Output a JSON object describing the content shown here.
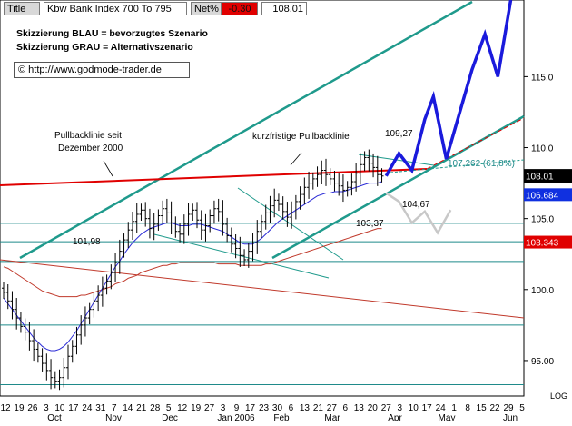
{
  "header": {
    "title_label": "Title",
    "title": "Kbw Bank Index 700 To 795",
    "change_label": "Net%",
    "change_value": "-0.30",
    "last_value": "108.01"
  },
  "notes": {
    "line1": "Skizzierung BLAU = bevorzugtes Szenario",
    "line2": "Skizzierung GRAU = Alternativszenario",
    "copyright_symbol": "©",
    "copyright_url": "http://www.godmode-trader.de"
  },
  "annotations": {
    "pullback_long_1": "Pullbacklinie seit",
    "pullback_long_2": "Dezember 2000",
    "pullback_short": "kurzfristige Pullbacklinie",
    "high_value": "109,27",
    "fib_label": "107,262 (61,8%)",
    "level_10467": "104,67",
    "level_10337": "103,37",
    "level_10198": "101,98"
  },
  "colors": {
    "price": "#000000",
    "channel": "#1f9a8c",
    "pullback": "#e00000",
    "ma_fast": "#2b2bd6",
    "ma_slow": "#c0392b",
    "scenario_blue": "#1a1adc",
    "scenario_grey": "#c8c8c8",
    "horizontal": "#1f8a8a",
    "badge_last": "#000000",
    "badge_blue": "#1030e0",
    "badge_red": "#e00000"
  },
  "chart_data": {
    "type": "ohlc",
    "ylim": [
      92.5,
      120.4
    ],
    "y_ticks": [
      95.0,
      100.0,
      105.0,
      110.0,
      115.0
    ],
    "y_tick_labels": [
      "95.00",
      "100.0",
      "105.0",
      "110.0",
      "115.0"
    ],
    "scale_label": "LOG",
    "x_day_labels": [
      "12",
      "19",
      "26",
      "3",
      "10",
      "17",
      "24",
      "31",
      "7",
      "14",
      "21",
      "28",
      "5",
      "12",
      "19",
      "27",
      "3",
      "9",
      "17",
      "23",
      "30",
      "6",
      "13",
      "21",
      "27",
      "6",
      "13",
      "20",
      "27",
      "3",
      "10",
      "17",
      "24",
      "1",
      "8",
      "15",
      "22",
      "29",
      "5"
    ],
    "x_month_labels": [
      "Oct",
      "Nov",
      "Dec",
      "Jan 2006",
      "Feb",
      "Mar",
      "Apr",
      "May",
      "Jun"
    ],
    "price_badges": [
      {
        "value": "108.01",
        "color": "#000000"
      },
      {
        "value": "106.684",
        "color": "#1030e0"
      },
      {
        "value": "103.343",
        "color": "#e00000"
      }
    ],
    "horizontal_levels": [
      93.3,
      97.5,
      101.98,
      103.37,
      104.67
    ],
    "fib_level": 107.262,
    "swing_levels": {
      "high": 109.27
    },
    "close": [
      99.8,
      99.2,
      98.6,
      98.0,
      97.4,
      97.0,
      96.4,
      95.8,
      95.3,
      94.8,
      94.3,
      93.8,
      93.5,
      93.8,
      94.5,
      95.3,
      96.0,
      96.8,
      97.5,
      98.0,
      98.6,
      99.2,
      99.6,
      100.1,
      100.6,
      101.2,
      101.9,
      102.7,
      103.5,
      104.2,
      104.8,
      105.3,
      105.6,
      105.0,
      104.3,
      104.6,
      105.2,
      105.7,
      105.4,
      104.7,
      104.1,
      103.9,
      104.6,
      105.3,
      105.6,
      104.9,
      104.2,
      104.5,
      105.2,
      105.7,
      105.5,
      104.6,
      103.8,
      103.2,
      102.9,
      102.4,
      102.1,
      102.7,
      103.3,
      104.1,
      104.8,
      105.4,
      105.9,
      106.3,
      106.0,
      105.5,
      105.1,
      105.4,
      106.2,
      106.7,
      107.2,
      107.5,
      107.8,
      108.1,
      108.4,
      108.1,
      107.8,
      107.5,
      107.3,
      107.0,
      107.2,
      107.6,
      108.2,
      108.8,
      109.3,
      108.9,
      108.6,
      108.1,
      108.0
    ],
    "ma_fast": [
      99.4,
      99.0,
      98.6,
      98.2,
      97.8,
      97.4,
      97.0,
      96.6,
      96.3,
      96.0,
      95.8,
      95.7,
      95.7,
      95.8,
      96.0,
      96.3,
      96.7,
      97.1,
      97.6,
      98.1,
      98.6,
      99.1,
      99.6,
      100.1,
      100.6,
      101.1,
      101.6,
      102.0,
      102.5,
      102.9,
      103.3,
      103.6,
      103.9,
      104.1,
      104.3,
      104.4,
      104.5,
      104.6,
      104.7,
      104.7,
      104.6,
      104.5,
      104.5,
      104.5,
      104.6,
      104.6,
      104.6,
      104.5,
      104.4,
      104.3,
      104.2,
      104.1,
      103.9,
      103.7,
      103.5,
      103.3,
      103.2,
      103.2,
      103.2,
      103.4,
      103.6,
      103.9,
      104.2,
      104.5,
      104.8,
      105.0,
      105.2,
      105.4,
      105.6,
      105.8,
      106.0,
      106.2,
      106.4,
      106.6,
      106.7,
      106.8,
      106.8,
      106.9,
      106.9,
      106.9,
      107.0,
      107.1,
      107.2,
      107.3,
      107.4,
      107.5,
      107.5,
      107.5,
      107.6
    ],
    "ma_slow": [
      101.6,
      101.5,
      101.3,
      101.1,
      100.9,
      100.7,
      100.5,
      100.3,
      100.1,
      99.9,
      99.8,
      99.7,
      99.6,
      99.5,
      99.5,
      99.5,
      99.5,
      99.5,
      99.6,
      99.6,
      99.7,
      99.8,
      99.9,
      100.0,
      100.1,
      100.2,
      100.4,
      100.5,
      100.6,
      100.8,
      100.9,
      101.0,
      101.2,
      101.3,
      101.4,
      101.5,
      101.6,
      101.7,
      101.7,
      101.8,
      101.8,
      101.9,
      101.9,
      101.9,
      101.9,
      101.9,
      101.9,
      101.9,
      101.9,
      101.9,
      101.8,
      101.8,
      101.8,
      101.8,
      101.8,
      101.7,
      101.7,
      101.7,
      101.7,
      101.7,
      101.7,
      101.8,
      101.8,
      101.9,
      102.0,
      102.1,
      102.2,
      102.3,
      102.4,
      102.5,
      102.6,
      102.7,
      102.8,
      102.9,
      103.0,
      103.1,
      103.2,
      103.3,
      103.4,
      103.5,
      103.6,
      103.7,
      103.8,
      103.9,
      104.0,
      104.1,
      104.2,
      104.3,
      104.3
    ],
    "scenario_blue": [
      [
        89,
        108.0
      ],
      [
        92,
        109.6
      ],
      [
        95,
        108.4
      ],
      [
        98,
        112.0
      ],
      [
        100,
        113.6
      ],
      [
        103,
        109.2
      ],
      [
        109,
        115.5
      ],
      [
        112,
        118.0
      ],
      [
        115,
        115.0
      ],
      [
        118,
        120.4
      ]
    ],
    "scenario_grey": [
      [
        89,
        106.8
      ],
      [
        92,
        106.2
      ],
      [
        95,
        104.7
      ],
      [
        98,
        105.5
      ],
      [
        101,
        104.0
      ],
      [
        104,
        105.6
      ]
    ]
  }
}
